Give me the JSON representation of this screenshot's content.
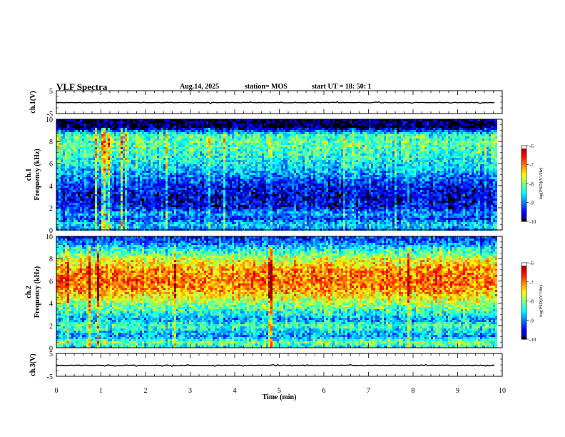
{
  "header": {
    "title": "VLF Spectra",
    "date": "Aug.14, 2025",
    "station": "station= MOS",
    "start": "start  UT  =   18: 50: 1"
  },
  "chart_data": [
    {
      "type": "line",
      "name": "ch1-waveform",
      "ylabel": "ch.1(V)",
      "ylim": [
        -5,
        5
      ],
      "yticks": [
        "5",
        "-5"
      ],
      "xlim": [
        0,
        10
      ],
      "level": -0.2
    },
    {
      "type": "heatmap",
      "name": "ch1-spectrogram",
      "ylabel": "ch.1\nFrequency (kHz)",
      "ylim": [
        0,
        10
      ],
      "yticks": [
        0,
        2,
        4,
        6,
        8,
        10
      ],
      "xlim": [
        0,
        10
      ],
      "data_end_min": 9.85,
      "colorbar": {
        "label": "log(PSD)(V²/Hz)",
        "range": [
          -10,
          -6
        ],
        "ticks": [
          "-6",
          "-7",
          "-8",
          "-9",
          "-10"
        ]
      },
      "band_profile": {
        "freq_khz": [
          0,
          0.5,
          1,
          1.5,
          2,
          3,
          4,
          5,
          6,
          7,
          8,
          8.6,
          9,
          9.3,
          10
        ],
        "log_psd": [
          -9.0,
          -8.6,
          -9.3,
          -8.8,
          -9.5,
          -9.6,
          -9.4,
          -8.9,
          -8.5,
          -8.3,
          -8.1,
          -8.3,
          -9.4,
          -10.0,
          -10.0
        ]
      }
    },
    {
      "type": "heatmap",
      "name": "ch2-spectrogram",
      "ylabel": "ch.2\nFrequency (kHz)",
      "ylim": [
        0,
        10
      ],
      "yticks": [
        0,
        2,
        4,
        6,
        8,
        10
      ],
      "xlim": [
        0,
        10
      ],
      "data_end_min": 9.85,
      "colorbar": {
        "label": "log(PSD)(V²/Hz)",
        "range": [
          -10,
          -6
        ],
        "ticks": [
          "-6",
          "-7",
          "-8",
          "-9",
          "-10"
        ]
      },
      "band_profile": {
        "freq_khz": [
          0,
          0.5,
          1,
          1.5,
          2,
          2.5,
          3,
          4,
          5,
          6,
          7,
          8,
          8.5,
          9,
          9.5,
          10
        ],
        "log_psd": [
          -8.5,
          -8.0,
          -8.9,
          -8.6,
          -8.2,
          -8.9,
          -8.5,
          -7.9,
          -7.2,
          -6.9,
          -7.1,
          -7.7,
          -8.2,
          -8.6,
          -9.1,
          -9.3
        ]
      }
    },
    {
      "type": "line",
      "name": "ch3-waveform",
      "ylabel": "ch.3(V)",
      "ylim": [
        -5,
        5
      ],
      "yticks": [
        "5",
        "-5"
      ],
      "xlim": [
        0,
        10
      ],
      "level": -0.2
    }
  ],
  "xaxis": {
    "label": "Time (min)",
    "ticks": [
      "0",
      "1",
      "2",
      "3",
      "4",
      "5",
      "6",
      "7",
      "8",
      "9",
      "10"
    ]
  }
}
